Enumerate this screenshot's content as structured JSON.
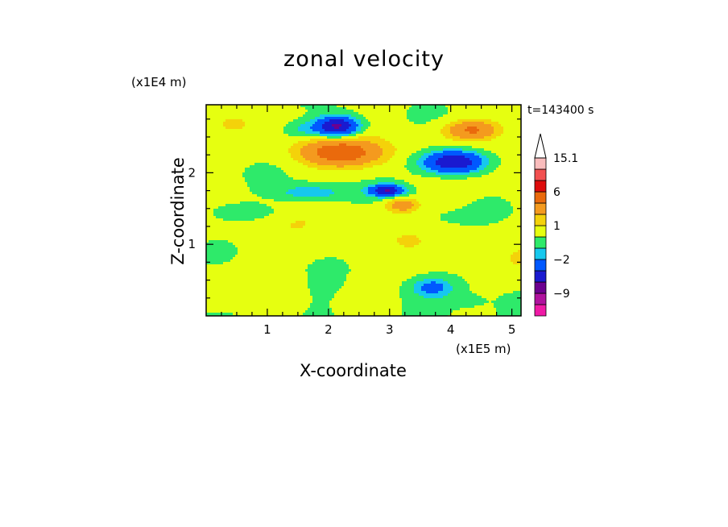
{
  "chart_data": {
    "type": "heatmap",
    "title": "zonal velocity",
    "xlabel": "X-coordinate",
    "ylabel": "Z-coordinate",
    "x_scale_label": "(x1E5 m)",
    "y_scale_label": "(x1E4 m)",
    "time_label": "t=143400 s",
    "xlim": [
      0,
      5.15
    ],
    "ylim": [
      0,
      2.95
    ],
    "x_ticks": [
      1,
      2,
      3,
      4,
      5
    ],
    "y_ticks": [
      1,
      2
    ],
    "colorbar": {
      "levels": [
        -15,
        -12,
        -9,
        -6,
        -4,
        -2,
        -1,
        0,
        1,
        2,
        4,
        6,
        9,
        12,
        15.1
      ],
      "colors": [
        "#ef1aa6",
        "#b0129e",
        "#6c0090",
        "#1a1ad0",
        "#0058ff",
        "#16c8ee",
        "#2eea6a",
        "#e6ff10",
        "#f4d20a",
        "#f49a1e",
        "#ea6a0c",
        "#de0c0c",
        "#f25050",
        "#f9bcbc"
      ],
      "labels": [
        {
          "value": 15.1,
          "text": "15.1"
        },
        {
          "value": 6,
          "text": "6"
        },
        {
          "value": 1,
          "text": "1"
        },
        {
          "value": -2,
          "text": "−2"
        },
        {
          "value": -9,
          "text": "−9"
        }
      ],
      "top_extension_color": "#ffffff"
    },
    "features": [
      {
        "x": 2.15,
        "z": 2.65,
        "rx": 0.34,
        "rz": 0.14,
        "value": -7
      },
      {
        "x": 2.2,
        "z": 2.28,
        "rx": 0.6,
        "rz": 0.17,
        "value": 5
      },
      {
        "x": 2.95,
        "z": 1.75,
        "rx": 0.28,
        "rz": 0.08,
        "value": -6
      },
      {
        "x": 4.05,
        "z": 2.15,
        "rx": 0.5,
        "rz": 0.16,
        "value": -7
      },
      {
        "x": 4.35,
        "z": 2.6,
        "rx": 0.4,
        "rz": 0.12,
        "value": 4
      },
      {
        "x": 1.6,
        "z": 2.6,
        "rx": 0.35,
        "rz": 0.12,
        "value": -1.5
      },
      {
        "x": 0.45,
        "z": 2.45,
        "rx": 0.4,
        "rz": 0.1,
        "value": -0.5
      },
      {
        "x": 0.6,
        "z": 1.45,
        "rx": 0.6,
        "rz": 0.12,
        "value": -1.5
      },
      {
        "x": 1.7,
        "z": 1.72,
        "rx": 0.6,
        "rz": 0.12,
        "value": -2
      },
      {
        "x": 3.2,
        "z": 1.55,
        "rx": 0.25,
        "rz": 0.1,
        "value": 3
      },
      {
        "x": 3.8,
        "z": 1.35,
        "rx": 0.6,
        "rz": 0.15,
        "value": -0.5
      },
      {
        "x": 3.7,
        "z": 0.4,
        "rx": 0.3,
        "rz": 0.12,
        "value": -2.5
      },
      {
        "x": 4.2,
        "z": 0.2,
        "rx": 0.3,
        "rz": 0.08,
        "value": -0.8
      }
    ]
  }
}
